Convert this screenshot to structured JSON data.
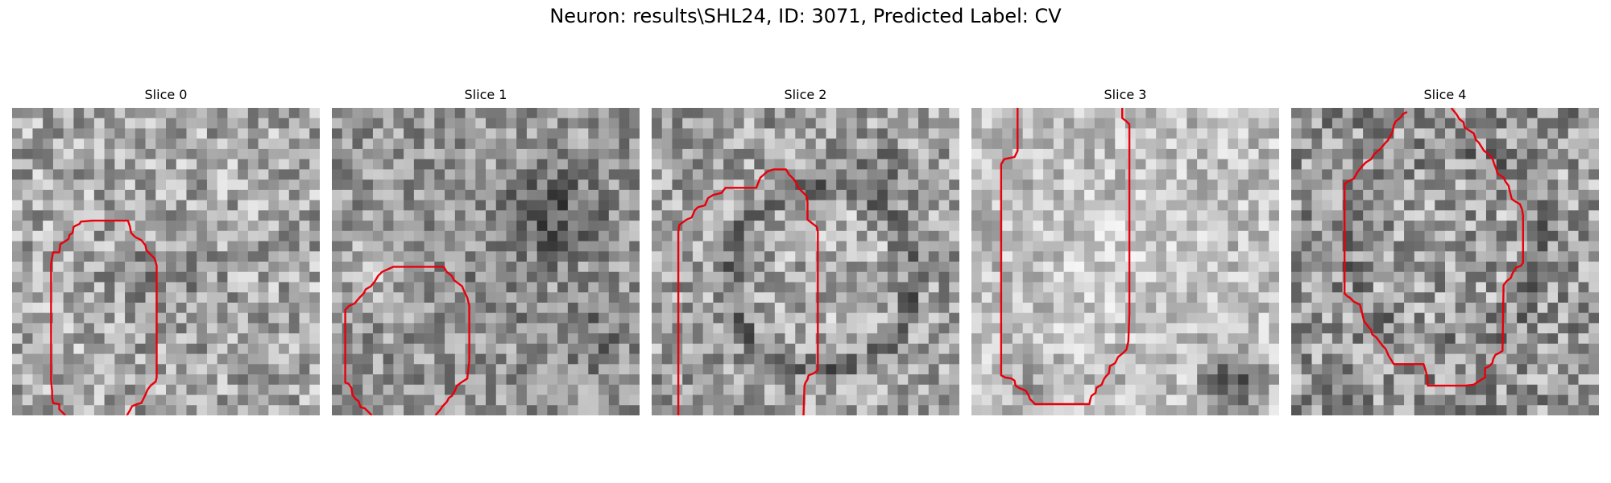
{
  "figure": {
    "title": "Neuron: results\\SHL24, ID: 3071, Predicted Label: CV"
  },
  "colors": {
    "contour": "#e8000b",
    "background": "#ffffff"
  },
  "panels": [
    {
      "title": "Slice 0"
    },
    {
      "title": "Slice 1"
    },
    {
      "title": "Slice 2"
    },
    {
      "title": "Slice 3"
    },
    {
      "title": "Slice 4"
    }
  ]
}
